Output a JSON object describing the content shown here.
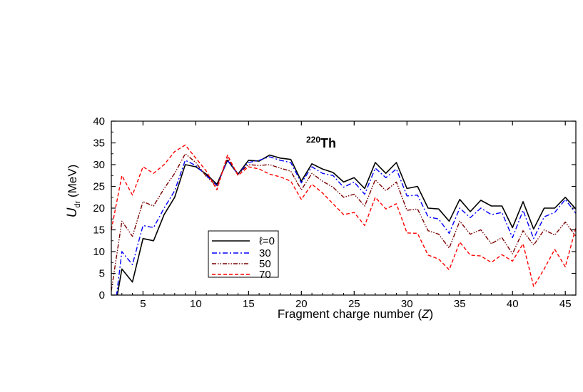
{
  "chart_data": {
    "type": "line",
    "annotation": {
      "prefix": "220",
      "text": "Th"
    },
    "xlabel": {
      "text": "Fragment charge number (",
      "var": "Z",
      "suffix": ")"
    },
    "ylabel": {
      "var": "U",
      "sub": "dr",
      "unit": " (MeV)"
    },
    "xlim": [
      2,
      46
    ],
    "ylim": [
      0,
      40
    ],
    "x_ticks": [
      5,
      10,
      15,
      20,
      25,
      30,
      35,
      40,
      45
    ],
    "y_ticks": [
      0,
      5,
      10,
      15,
      20,
      25,
      30,
      35,
      40
    ],
    "grid": false,
    "legend_position": "lower-left",
    "x": [
      2,
      3,
      4,
      5,
      6,
      7,
      8,
      9,
      10,
      11,
      12,
      13,
      14,
      15,
      16,
      17,
      18,
      19,
      20,
      21,
      22,
      23,
      24,
      25,
      26,
      27,
      28,
      29,
      30,
      31,
      32,
      33,
      34,
      35,
      36,
      37,
      38,
      39,
      40,
      41,
      42,
      43,
      44,
      45,
      46
    ],
    "series": [
      {
        "name": "ℓ=0",
        "color": "#000000",
        "dash": "",
        "width": 1.6,
        "values": [
          -8,
          6,
          3,
          13,
          12.5,
          18.5,
          22.5,
          30,
          29.5,
          27.8,
          25.5,
          31,
          27.8,
          31,
          30.8,
          32.2,
          31.5,
          31.2,
          26.2,
          30.2,
          29,
          28.2,
          26,
          27,
          24.5,
          30.5,
          28,
          30.5,
          24.5,
          25,
          20,
          19.8,
          17,
          22,
          19.2,
          21.8,
          20.5,
          20.5,
          15.5,
          21.5,
          15.2,
          20,
          20,
          22.5,
          19.8
        ]
      },
      {
        "name": "30",
        "color": "#0000ff",
        "dash": "7,3,2,3",
        "width": 1.4,
        "values": [
          -10,
          10,
          7,
          16,
          15.5,
          20,
          24,
          31,
          29.8,
          27.5,
          25.2,
          31,
          27.8,
          30.5,
          31,
          31.8,
          31,
          30.5,
          25.8,
          29.5,
          28,
          27.5,
          24.8,
          26,
          23.2,
          29.2,
          27,
          29,
          22.8,
          23,
          18,
          17.5,
          14.2,
          20,
          17.8,
          20,
          18.5,
          19,
          13.2,
          19.5,
          13,
          18,
          19,
          22,
          18.8
        ]
      },
      {
        "name": "50",
        "color": "#7a0000",
        "dash": "6,2,1.5,2,1.5,2",
        "width": 1.4,
        "values": [
          1,
          17,
          13.5,
          21.5,
          20.5,
          24.5,
          28,
          32.5,
          30.5,
          27.3,
          25,
          31.5,
          27.8,
          30,
          29.8,
          30,
          29.2,
          28.5,
          24.2,
          28,
          26.2,
          24.8,
          22.5,
          23.2,
          20.5,
          26.5,
          24,
          26,
          19.5,
          19.8,
          14.8,
          14,
          10.8,
          17,
          14,
          15,
          11.8,
          13.2,
          9.5,
          14.8,
          11.5,
          15,
          13.8,
          16.8,
          13.5
        ]
      },
      {
        "name": "70",
        "color": "#ff0000",
        "dash": "5,3",
        "width": 1.4,
        "values": [
          15,
          27.5,
          23,
          29.5,
          28,
          30,
          33,
          34.5,
          31.5,
          28.5,
          24.2,
          32.2,
          27.5,
          29.5,
          29,
          27.8,
          27.2,
          26.2,
          22,
          25.5,
          23.5,
          21,
          18.5,
          19,
          16,
          22.5,
          19.8,
          21,
          14.3,
          14.2,
          9.2,
          8.3,
          5.8,
          12.2,
          9.2,
          9,
          7.5,
          9.3,
          7.8,
          11.8,
          2,
          6,
          10.5,
          6.5,
          15.5
        ]
      }
    ]
  }
}
